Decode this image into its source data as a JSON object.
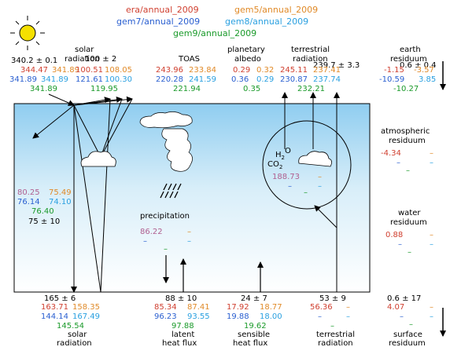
{
  "legend": {
    "era": "era/annual_2009",
    "gem5": "gem5/annual_2009",
    "gem7": "gem7/annual_2009",
    "gem8": "gem8/annual_2009",
    "gem9": "gem9/annual_2009"
  },
  "colors": {
    "era": "#d04030",
    "gem5": "#e08a28",
    "gem7": "#2a5fd0",
    "gem8": "#2aa0e0",
    "gem9": "#1a9a2a",
    "obs": "#b06090"
  },
  "top": {
    "solar_label_1": "solar",
    "solar_label_2": "radiation",
    "solar_obs": "340.2 ± 0.1",
    "solar_era": "344.47",
    "solar_gem5": "341.89",
    "solar_gem7": "341.89",
    "solar_gem8": "341.89",
    "solar_gem9": "341.89",
    "refl_obs": "100 ± 2",
    "refl_era": "100.51",
    "refl_gem5": "108.05",
    "refl_gem7": "121.61",
    "refl_gem8": "100.30",
    "refl_gem9": "119.95",
    "toas_label": "TOAS",
    "toas_era": "243.96",
    "toas_gem5": "233.84",
    "toas_gem7": "220.28",
    "toas_gem8": "241.59",
    "toas_gem9": "221.94",
    "albedo_label_1": "planetary",
    "albedo_label_2": "albedo",
    "albedo_era": "0.29",
    "albedo_gem5": "0.32",
    "albedo_gem7": "0.36",
    "albedo_gem8": "0.29",
    "albedo_gem9": "0.35",
    "terr_label_1": "terrestrial",
    "terr_label_2": "radiation",
    "terr_obs": "239.7 ± 3.3",
    "terr_era": "245.11",
    "terr_gem5": "237.41",
    "terr_gem7": "230.87",
    "terr_gem8": "237.74",
    "terr_gem9": "232.21",
    "earth_label_1": "earth",
    "earth_label_2": "residuum",
    "earth_obs": "0.6 ± 0.4",
    "earth_era": "-1.15",
    "earth_gem5": "-3.57",
    "earth_gem7": "-10.59",
    "earth_gem8": "3.85",
    "earth_gem9": "-10.27"
  },
  "atmo": {
    "absorbed_era": "80.25",
    "absorbed_gem5": "75.49",
    "absorbed_gem7": "76.14",
    "absorbed_gem8": "74.10",
    "absorbed_gem9": "76.40",
    "absorbed_obs": "75 ± 10",
    "precip_label": "precipitation",
    "precip_era": "86.22",
    "precip_gem5": "–",
    "precip_gem7": "–",
    "precip_gem8": "–",
    "precip_gem9": "–",
    "h2o": "H",
    "h2o_sub": "2",
    "h2o_o": "O",
    "co2": "CO",
    "co2_sub": "2",
    "circle_era": "188.73",
    "circle_gem5": "–",
    "circle_gem7": "–",
    "circle_gem8": "–",
    "circle_gem9": "–"
  },
  "right": {
    "atmos_label_1": "atmospheric",
    "atmos_label_2": "residuum",
    "atmos_era": "-4.34",
    "atmos_gem5": "–",
    "atmos_gem7": "–",
    "atmos_gem8": "–",
    "atmos_gem9": "–",
    "water_label_1": "water",
    "water_label_2": "residuum",
    "water_era": "0.88",
    "water_gem5": "–",
    "water_gem7": "–",
    "water_gem8": "–",
    "water_gem9": "–"
  },
  "bottom": {
    "solar_obs": "165 ±   6",
    "solar_era": "163.71",
    "solar_gem5": "158.35",
    "solar_gem7": "144.14",
    "solar_gem8": "167.49",
    "solar_gem9": "145.54",
    "solar_label_1": "solar",
    "solar_label_2": "radiation",
    "latent_obs": "88 ± 10",
    "latent_era": "85.34",
    "latent_gem5": "87.41",
    "latent_gem7": "96.23",
    "latent_gem8": "93.55",
    "latent_gem9": "97.88",
    "latent_label_1": "latent",
    "latent_label_2": "heat flux",
    "sens_obs": "24 ±  7",
    "sens_era": "17.92",
    "sens_gem5": "18.77",
    "sens_gem7": "19.88",
    "sens_gem8": "18.00",
    "sens_gem9": "19.62",
    "sens_label_1": "sensible",
    "sens_label_2": "heat flux",
    "terr_obs": "53 ±  9",
    "terr_era": "56.36",
    "terr_gem5": "–",
    "terr_gem7": "–",
    "terr_gem8": "–",
    "terr_gem9": "–",
    "terr_label_1": "terrestrial",
    "terr_label_2": "radiation",
    "surf_obs": "0.6 ± 17",
    "surf_era": "4.07",
    "surf_gem5": "–",
    "surf_gem7": "–",
    "surf_gem8": "–",
    "surf_gem9": "–",
    "surf_label_1": "surface",
    "surf_label_2": "residuum"
  }
}
